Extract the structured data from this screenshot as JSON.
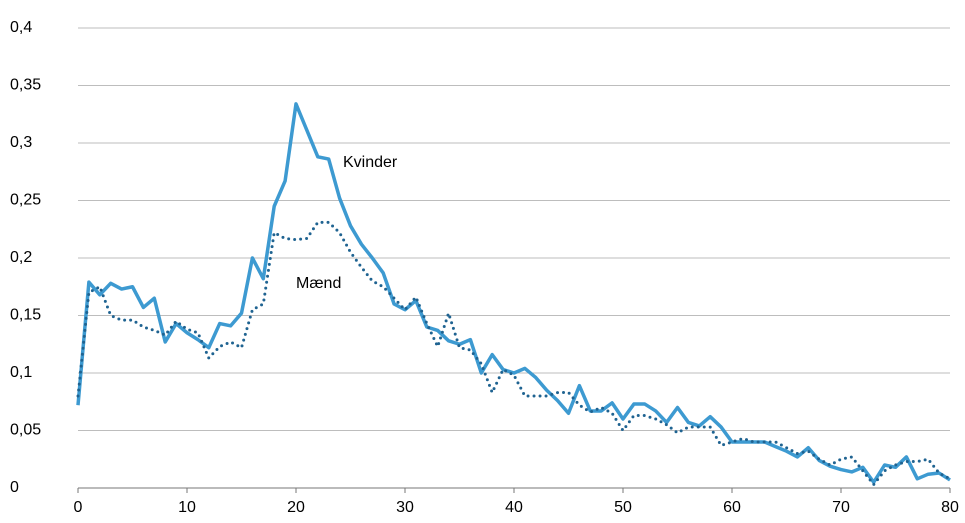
{
  "chart_data": {
    "type": "line",
    "x": [
      0,
      1,
      2,
      3,
      4,
      5,
      6,
      7,
      8,
      9,
      10,
      11,
      12,
      13,
      14,
      15,
      16,
      17,
      18,
      19,
      20,
      21,
      22,
      23,
      24,
      25,
      26,
      27,
      28,
      29,
      30,
      31,
      32,
      33,
      34,
      35,
      36,
      37,
      38,
      39,
      40,
      41,
      42,
      43,
      44,
      45,
      46,
      47,
      48,
      49,
      50,
      51,
      52,
      53,
      54,
      55,
      56,
      57,
      58,
      59,
      60,
      61,
      62,
      63,
      64,
      65,
      66,
      67,
      68,
      69,
      70,
      71,
      72,
      73,
      74,
      75,
      76,
      77,
      78,
      79,
      80
    ],
    "series": [
      {
        "name": "Kvinder",
        "color": "#3d9ad1",
        "style": "solid",
        "values": [
          0.072,
          0.179,
          0.168,
          0.178,
          0.173,
          0.175,
          0.157,
          0.165,
          0.127,
          0.143,
          0.135,
          0.129,
          0.122,
          0.143,
          0.141,
          0.152,
          0.2,
          0.182,
          0.245,
          0.267,
          0.334,
          0.311,
          0.288,
          0.286,
          0.252,
          0.228,
          0.212,
          0.2,
          0.187,
          0.16,
          0.155,
          0.163,
          0.14,
          0.137,
          0.128,
          0.125,
          0.129,
          0.1,
          0.116,
          0.103,
          0.1,
          0.104,
          0.096,
          0.085,
          0.076,
          0.065,
          0.089,
          0.067,
          0.067,
          0.074,
          0.06,
          0.073,
          0.073,
          0.067,
          0.057,
          0.07,
          0.057,
          0.054,
          0.062,
          0.053,
          0.04,
          0.04,
          0.04,
          0.04,
          0.036,
          0.032,
          0.027,
          0.035,
          0.024,
          0.019,
          0.016,
          0.014,
          0.018,
          0.005,
          0.02,
          0.018,
          0.027,
          0.008,
          0.012,
          0.013,
          0.007
        ]
      },
      {
        "name": "Mænd",
        "color": "#1f6391",
        "style": "dotted",
        "values": [
          0.08,
          0.17,
          0.175,
          0.15,
          0.146,
          0.146,
          0.14,
          0.137,
          0.133,
          0.145,
          0.138,
          0.135,
          0.113,
          0.123,
          0.127,
          0.122,
          0.155,
          0.16,
          0.222,
          0.217,
          0.216,
          0.217,
          0.231,
          0.231,
          0.222,
          0.205,
          0.192,
          0.18,
          0.175,
          0.165,
          0.155,
          0.166,
          0.143,
          0.123,
          0.152,
          0.122,
          0.12,
          0.108,
          0.083,
          0.103,
          0.098,
          0.08,
          0.08,
          0.08,
          0.083,
          0.083,
          0.072,
          0.066,
          0.07,
          0.065,
          0.05,
          0.063,
          0.063,
          0.06,
          0.055,
          0.048,
          0.053,
          0.053,
          0.053,
          0.037,
          0.04,
          0.043,
          0.04,
          0.04,
          0.04,
          0.035,
          0.03,
          0.032,
          0.025,
          0.02,
          0.025,
          0.027,
          0.015,
          0.003,
          0.015,
          0.02,
          0.023,
          0.023,
          0.025,
          0.013,
          0.008
        ]
      }
    ],
    "xlim": [
      0,
      80
    ],
    "xticks": [
      0,
      10,
      20,
      30,
      40,
      50,
      60,
      70,
      80
    ],
    "ylim": [
      0,
      0.4
    ],
    "yticks": [
      0,
      {
        "value": 0.05,
        "label": "0,05"
      },
      {
        "value": 0.1,
        "label": "0,1"
      },
      {
        "value": 0.15,
        "label": "0,15"
      },
      {
        "value": 0.2,
        "label": "0,2"
      },
      {
        "value": 0.25,
        "label": "0,25"
      },
      {
        "value": 0.3,
        "label": "0,3"
      },
      {
        "value": 0.35,
        "label": "0,35"
      },
      {
        "value": 0.4,
        "label": "0,4"
      }
    ],
    "grid": true,
    "annotations": [
      "Kvinder",
      "Mænd"
    ]
  }
}
